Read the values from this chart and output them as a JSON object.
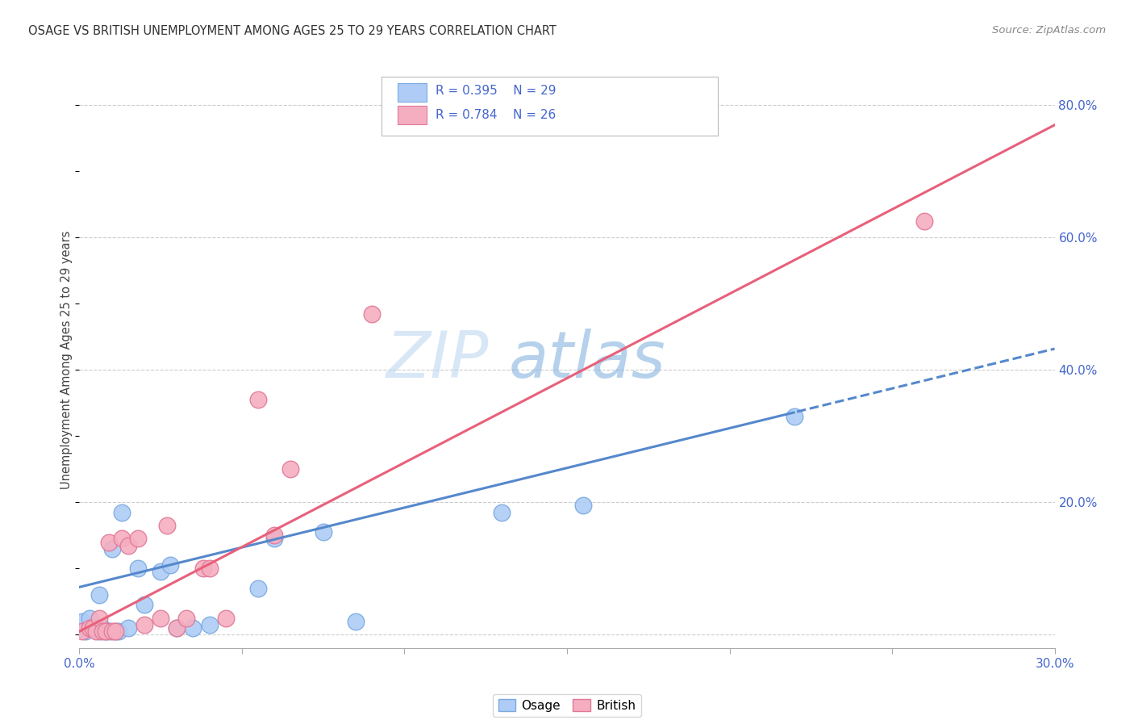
{
  "title": "OSAGE VS BRITISH UNEMPLOYMENT AMONG AGES 25 TO 29 YEARS CORRELATION CHART",
  "source": "Source: ZipAtlas.com",
  "ylabel": "Unemployment Among Ages 25 to 29 years",
  "xlim": [
    0.0,
    0.3
  ],
  "ylim": [
    -0.02,
    0.85
  ],
  "watermark_zip": "ZIP",
  "watermark_atlas": "atlas",
  "osage_R": 0.395,
  "osage_N": 29,
  "british_R": 0.784,
  "british_N": 26,
  "osage_color": "#aeccf5",
  "british_color": "#f5aec0",
  "osage_edge_color": "#7aaae0",
  "british_edge_color": "#e07898",
  "osage_line_color": "#5588cc",
  "british_line_color": "#e8607a",
  "legend_text_color": "#4466cc",
  "grid_color": "#cccccc",
  "background_color": "#ffffff",
  "osage_points_x": [
    0.001,
    0.002,
    0.003,
    0.004,
    0.005,
    0.006,
    0.006,
    0.007,
    0.008,
    0.009,
    0.01,
    0.011,
    0.012,
    0.013,
    0.015,
    0.018,
    0.02,
    0.025,
    0.028,
    0.03,
    0.035,
    0.04,
    0.055,
    0.06,
    0.075,
    0.085,
    0.13,
    0.155,
    0.22
  ],
  "osage_points_y": [
    0.02,
    0.005,
    0.025,
    0.01,
    0.01,
    0.06,
    0.005,
    0.01,
    0.005,
    0.005,
    0.13,
    0.005,
    0.005,
    0.185,
    0.01,
    0.1,
    0.045,
    0.095,
    0.105,
    0.01,
    0.01,
    0.015,
    0.07,
    0.145,
    0.155,
    0.02,
    0.185,
    0.195,
    0.33
  ],
  "british_points_x": [
    0.001,
    0.003,
    0.004,
    0.005,
    0.006,
    0.007,
    0.008,
    0.009,
    0.01,
    0.011,
    0.013,
    0.015,
    0.018,
    0.02,
    0.025,
    0.027,
    0.03,
    0.033,
    0.038,
    0.04,
    0.045,
    0.055,
    0.06,
    0.065,
    0.09,
    0.26
  ],
  "british_points_y": [
    0.005,
    0.01,
    0.01,
    0.005,
    0.025,
    0.005,
    0.005,
    0.14,
    0.005,
    0.005,
    0.145,
    0.135,
    0.145,
    0.015,
    0.025,
    0.165,
    0.01,
    0.025,
    0.1,
    0.1,
    0.025,
    0.355,
    0.15,
    0.25,
    0.485,
    0.625
  ],
  "osage_line_intercept": 0.072,
  "osage_line_slope": 1.2,
  "british_line_intercept": 0.005,
  "british_line_slope": 2.55
}
